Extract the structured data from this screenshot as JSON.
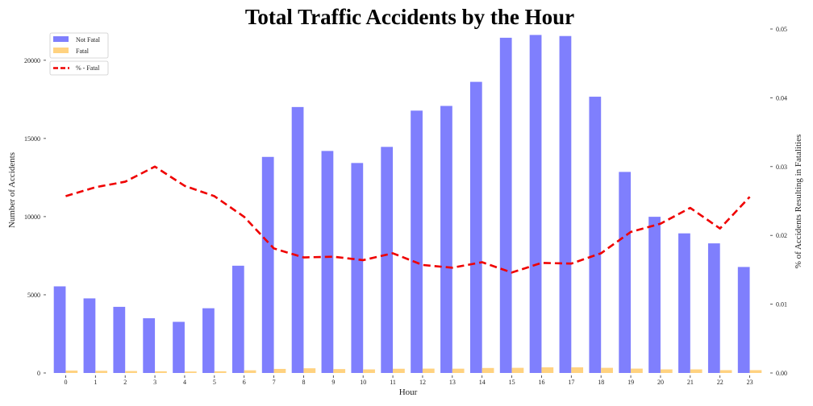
{
  "chart_data": {
    "type": "bar",
    "title": "Total Traffic Accidents by the Hour",
    "xlabel": "Hour",
    "ylabel": "Number of Accidents",
    "y2label": "% of Accidents Resulting in Fatalities",
    "categories": [
      "0",
      "1",
      "2",
      "3",
      "4",
      "5",
      "6",
      "7",
      "8",
      "9",
      "10",
      "11",
      "12",
      "13",
      "14",
      "15",
      "16",
      "17",
      "18",
      "19",
      "20",
      "21",
      "22",
      "23"
    ],
    "ylim": [
      0,
      22000
    ],
    "y2lim": [
      0,
      0.05
    ],
    "yticks": [
      0,
      5000,
      10000,
      15000,
      20000
    ],
    "yticklabels": [
      "0",
      "5000",
      "10000",
      "15000",
      "20000"
    ],
    "y2ticks": [
      0,
      0.01,
      0.02,
      0.03,
      0.04,
      0.05
    ],
    "y2ticklabels": [
      "0.00",
      "0.01",
      "0.02",
      "0.03",
      "0.04",
      "0.05"
    ],
    "grid": false,
    "legend_position": "top-left",
    "series": [
      {
        "name": "Not Fatal",
        "kind": "bar",
        "axis": "left",
        "color": "#7f7ffd",
        "values": [
          5540,
          4770,
          4230,
          3500,
          3270,
          4140,
          6860,
          13820,
          17010,
          14200,
          13430,
          14460,
          16780,
          17080,
          18620,
          21440,
          21620,
          21550,
          17670,
          12860,
          9990,
          8930,
          8290,
          6780
        ]
      },
      {
        "name": "Fatal",
        "kind": "bar",
        "axis": "left",
        "color": "#ffd280",
        "values": [
          155,
          140,
          125,
          110,
          95,
          110,
          170,
          260,
          300,
          250,
          230,
          270,
          280,
          275,
          320,
          330,
          360,
          360,
          330,
          280,
          230,
          230,
          180,
          180
        ]
      },
      {
        "name": "% - Fatal",
        "kind": "line",
        "axis": "right",
        "color": "#ef0000",
        "values": [
          0.0257,
          0.027,
          0.0278,
          0.03,
          0.0272,
          0.0257,
          0.0227,
          0.0181,
          0.0168,
          0.0169,
          0.0164,
          0.0174,
          0.0157,
          0.0153,
          0.0161,
          0.0146,
          0.016,
          0.0159,
          0.0174,
          0.0205,
          0.0217,
          0.024,
          0.021,
          0.0256
        ]
      }
    ]
  }
}
